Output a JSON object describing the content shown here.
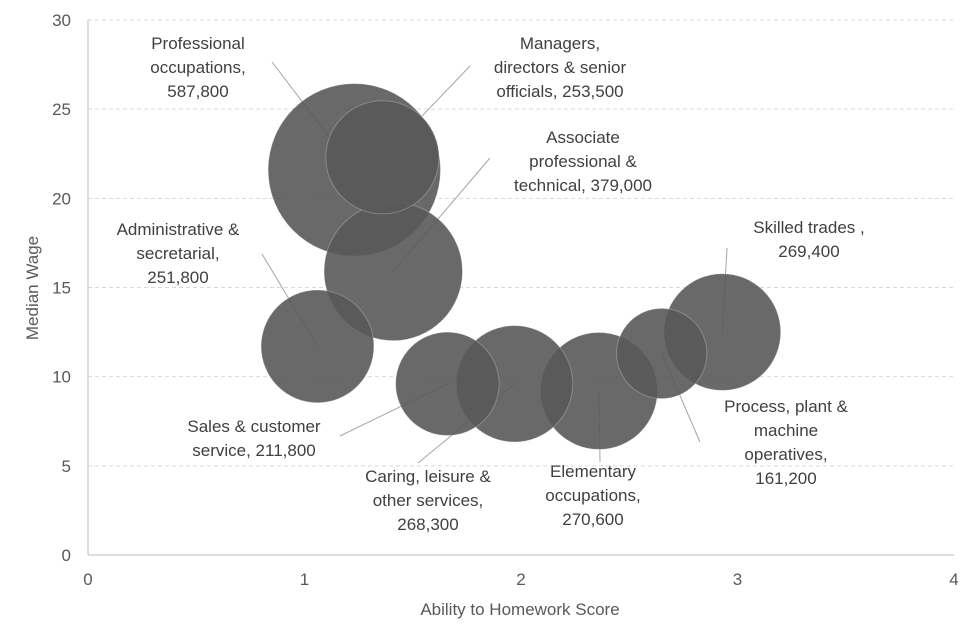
{
  "chart_data": {
    "type": "scatter",
    "subtype": "bubble",
    "title": "",
    "xlabel": "Ability to Homework Score",
    "ylabel": "Median Wage",
    "xlim": [
      0,
      4
    ],
    "ylim": [
      0,
      30
    ],
    "xticks": [
      "0",
      "1",
      "2",
      "3",
      "4"
    ],
    "yticks": [
      "0",
      "5",
      "10",
      "15",
      "20",
      "25",
      "30"
    ],
    "grid": "horizontal dashed",
    "bubble_color": "#595959",
    "points": [
      {
        "label": [
          "Professional",
          "occupations,",
          "587,800"
        ],
        "x": 1.23,
        "y": 21.6,
        "size": 587800
      },
      {
        "label": [
          "Managers,",
          "directors & senior",
          "officials, 253,500"
        ],
        "x": 1.36,
        "y": 22.3,
        "size": 253500
      },
      {
        "label": [
          "Associate",
          "professional &",
          "technical, 379,000"
        ],
        "x": 1.41,
        "y": 15.9,
        "size": 379000
      },
      {
        "label": [
          "Administrative  &",
          "secretarial,",
          "251,800"
        ],
        "x": 1.06,
        "y": 11.7,
        "size": 251800
      },
      {
        "label": [
          "Sales & customer",
          "service, 211,800"
        ],
        "x": 1.66,
        "y": 9.6,
        "size": 211800
      },
      {
        "label": [
          "Caring,  leisure &",
          "other services,",
          "268,300"
        ],
        "x": 1.97,
        "y": 9.6,
        "size": 268300
      },
      {
        "label": [
          "Elementary",
          "occupations,",
          "270,600"
        ],
        "x": 2.36,
        "y": 9.2,
        "size": 270600
      },
      {
        "label": [
          "Process, plant &",
          "machine",
          "operatives,",
          "161,200"
        ],
        "x": 2.65,
        "y": 11.3,
        "size": 161200
      },
      {
        "label": [
          "Skilled trades ,",
          "269,400"
        ],
        "x": 2.93,
        "y": 12.5,
        "size": 269400
      }
    ]
  }
}
